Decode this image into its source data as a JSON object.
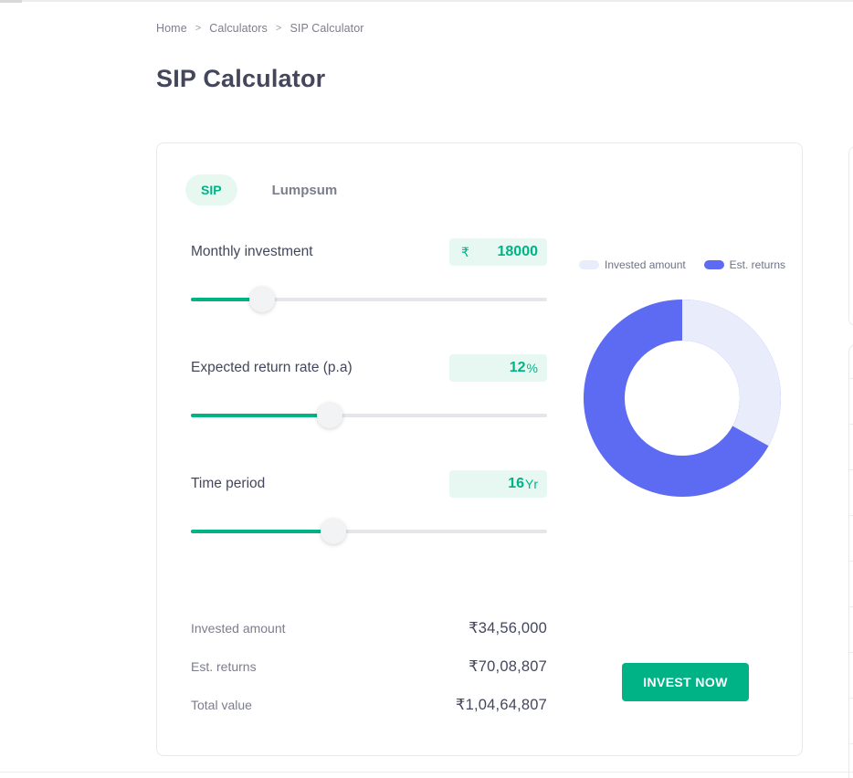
{
  "breadcrumb": {
    "items": [
      "Home",
      "Calculators",
      "SIP Calculator"
    ],
    "separator": ">"
  },
  "page": {
    "title": "SIP Calculator"
  },
  "tabs": {
    "sip": "SIP",
    "lumpsum": "Lumpsum"
  },
  "inputs": {
    "monthly_investment": {
      "label": "Monthly investment",
      "currency_symbol": "₹",
      "value": "18000",
      "slider_pct": 20
    },
    "return_rate": {
      "label": "Expected return rate (p.a)",
      "value": "12",
      "unit": "%",
      "slider_pct": 39
    },
    "time_period": {
      "label": "Time period",
      "value": "16",
      "unit": "Yr",
      "slider_pct": 40
    }
  },
  "legend": {
    "invested": "Invested amount",
    "returns": "Est. returns"
  },
  "results": {
    "rows": [
      {
        "label": "Invested amount",
        "value": "₹34,56,000"
      },
      {
        "label": "Est. returns",
        "value": "₹70,08,807"
      },
      {
        "label": "Total value",
        "value": "₹1,04,64,807"
      }
    ]
  },
  "cta": {
    "label": "INVEST NOW"
  },
  "chart_data": {
    "type": "pie",
    "labels": [
      "Invested amount",
      "Est. returns"
    ],
    "values": [
      3456000,
      7008807
    ],
    "total": 10464807,
    "percentages": [
      33.03,
      66.97
    ],
    "colors": {
      "invested": "#e9ecfb",
      "returns": "#5c6bf2"
    },
    "legend_position": "top-right",
    "donut": true
  },
  "colors": {
    "accent_green": "#00b386",
    "mint_bg": "#e7f8f2",
    "dark_text": "#44475b",
    "gray_text": "#7c7e8c",
    "track_gray": "#e5e6e9",
    "card_border": "#e9e9eb"
  }
}
